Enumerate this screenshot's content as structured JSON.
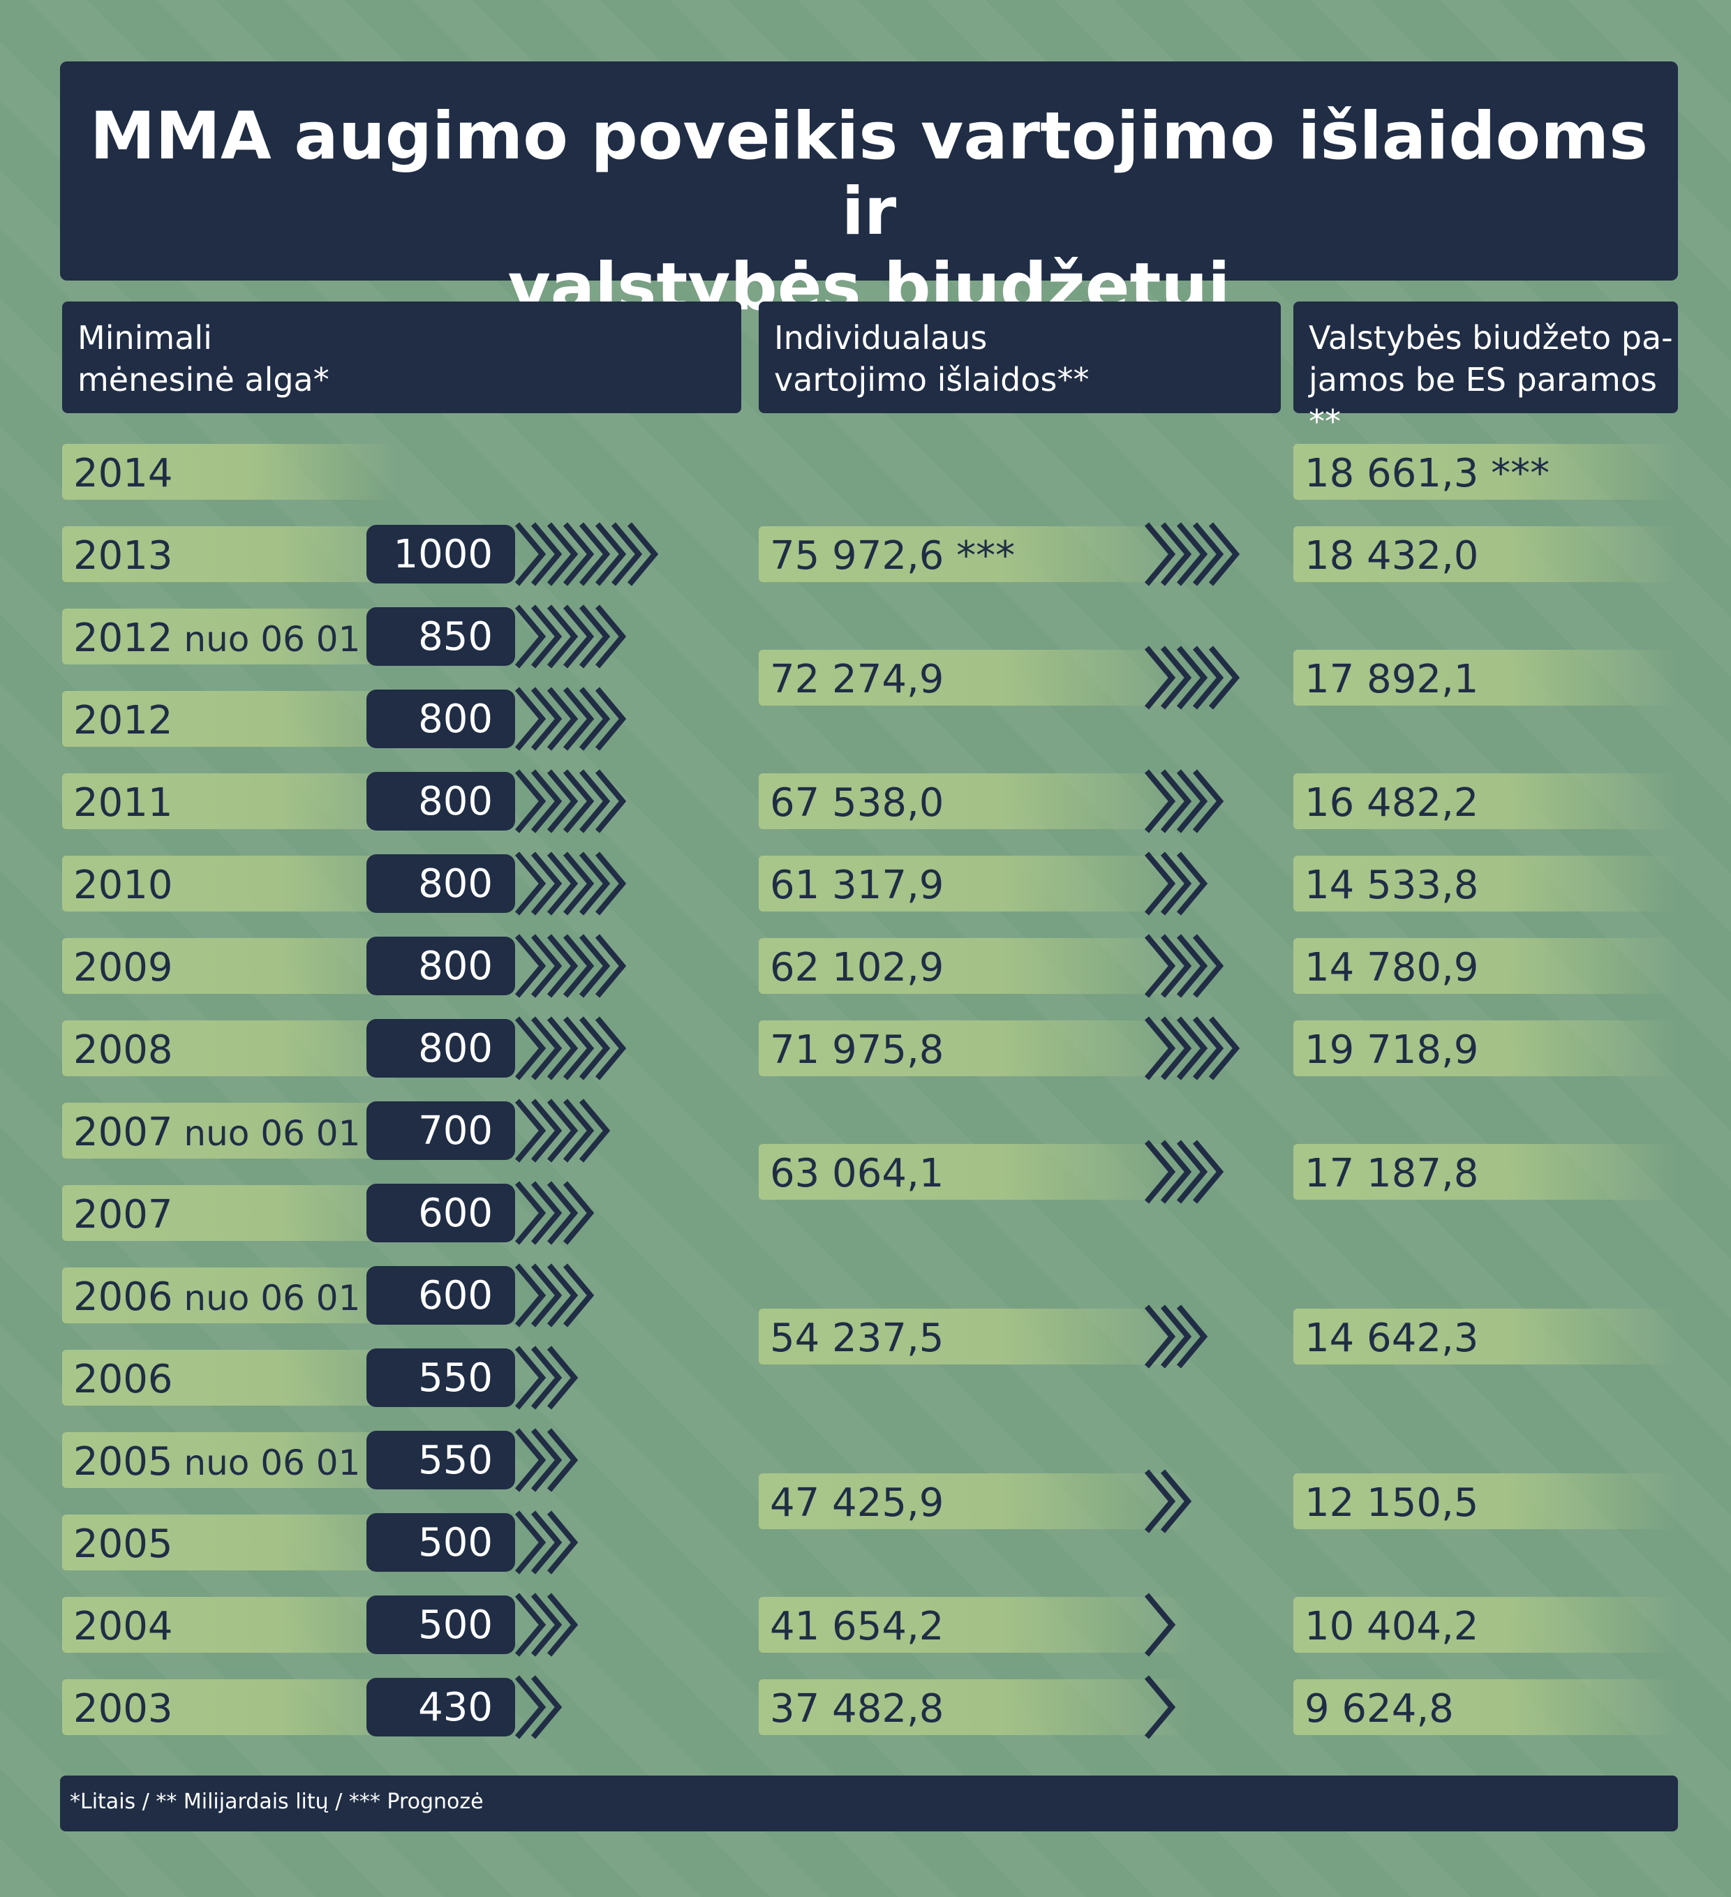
{
  "title": {
    "line1": "MMA augimo poveikis vartojimo išlaidoms ir",
    "line2": "valstybės biudžetui"
  },
  "headers": {
    "col1": "Minimali\nmėnesinė alga*",
    "col2": "Individualaus\nvartojimo išlaidos**",
    "col3": "Valstybės biudžeto pa-\njamos be ES paramos **"
  },
  "footer": "*Litais / ** Milijardais litų / *** Prognozė",
  "colors": {
    "navy": "#202d45",
    "background": "#78a083",
    "pill": "#a9c68a"
  },
  "chart_data": {
    "type": "table",
    "wage_rows": [
      {
        "year": "2014",
        "period": "",
        "mma": null
      },
      {
        "year": "2013",
        "period": "",
        "mma": 1000
      },
      {
        "year": "2012",
        "period": "nuo 06 01",
        "mma": 850
      },
      {
        "year": "2012",
        "period": "",
        "mma": 800
      },
      {
        "year": "2011",
        "period": "",
        "mma": 800
      },
      {
        "year": "2010",
        "period": "",
        "mma": 800
      },
      {
        "year": "2009",
        "period": "",
        "mma": 800
      },
      {
        "year": "2008",
        "period": "",
        "mma": 800
      },
      {
        "year": "2007",
        "period": "nuo 06 01",
        "mma": 700
      },
      {
        "year": "2007",
        "period": "",
        "mma": 600
      },
      {
        "year": "2006",
        "period": "nuo 06 01",
        "mma": 600
      },
      {
        "year": "2006",
        "period": "",
        "mma": 550
      },
      {
        "year": "2005",
        "period": "nuo 06 01",
        "mma": 550
      },
      {
        "year": "2005",
        "period": "",
        "mma": 500
      },
      {
        "year": "2004",
        "period": "",
        "mma": 500
      },
      {
        "year": "2003",
        "period": "",
        "mma": 430
      }
    ],
    "annual_rows": [
      {
        "year": "2014",
        "consumption": "",
        "consumption_value": null,
        "budget": "18 661,3 ***",
        "budget_value": 18661.3
      },
      {
        "year": "2013",
        "consumption": "75 972,6 ***",
        "consumption_value": 75972.6,
        "budget": "18 432,0",
        "budget_value": 18432.0
      },
      {
        "year": "2012",
        "consumption": "72 274,9",
        "consumption_value": 72274.9,
        "budget": "17 892,1",
        "budget_value": 17892.1
      },
      {
        "year": "2011",
        "consumption": "67 538,0",
        "consumption_value": 67538.0,
        "budget": "16 482,2",
        "budget_value": 16482.2
      },
      {
        "year": "2010",
        "consumption": "61 317,9",
        "consumption_value": 61317.9,
        "budget": "14 533,8",
        "budget_value": 14533.8
      },
      {
        "year": "2009",
        "consumption": "62 102,9",
        "consumption_value": 62102.9,
        "budget": "14 780,9",
        "budget_value": 14780.9
      },
      {
        "year": "2008",
        "consumption": "71 975,8",
        "consumption_value": 71975.8,
        "budget": "19 718,9",
        "budget_value": 19718.9
      },
      {
        "year": "2007",
        "consumption": "63 064,1",
        "consumption_value": 63064.1,
        "budget": "17 187,8",
        "budget_value": 17187.8
      },
      {
        "year": "2006",
        "consumption": "54 237,5",
        "consumption_value": 54237.5,
        "budget": "14 642,3",
        "budget_value": 14642.3
      },
      {
        "year": "2005",
        "consumption": "47 425,9",
        "consumption_value": 47425.9,
        "budget": "12 150,5",
        "budget_value": 12150.5
      },
      {
        "year": "2004",
        "consumption": "41 654,2",
        "consumption_value": 41654.2,
        "budget": "10 404,2",
        "budget_value": 10404.2
      },
      {
        "year": "2003",
        "consumption": "37 482,8",
        "consumption_value": 37482.8,
        "budget": "9 624,8",
        "budget_value": 9624.8
      }
    ]
  }
}
